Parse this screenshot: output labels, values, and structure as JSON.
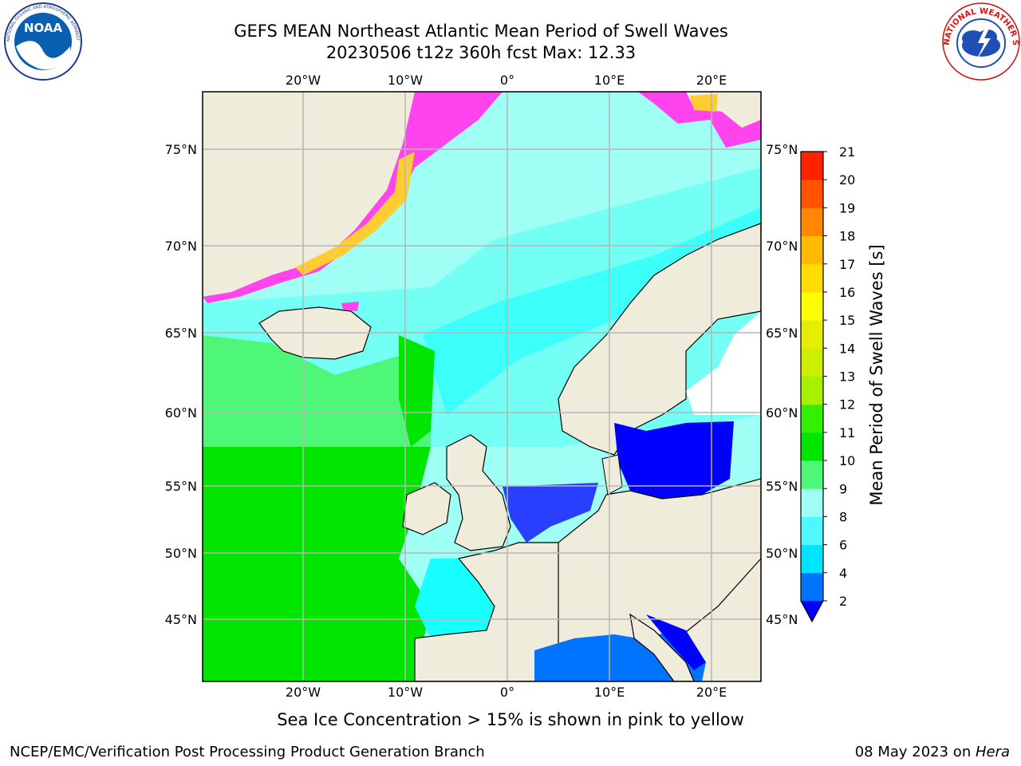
{
  "header": {
    "title_line1": "GEFS MEAN Northeast Atlantic Mean Period of Swell Waves",
    "title_line2": "20230506 t12z 360h fcst   Max: 12.33"
  },
  "logos": {
    "noaa_text": "NOAA",
    "noaa_ring_text": "NATIONAL OCEANIC AND ATMOSPHERIC ADMINISTRATION · U.S. DEPARTMENT OF COMMERCE",
    "nws_ring_text": "NATIONAL WEATHER SERVICE"
  },
  "map": {
    "lon_labels": [
      "20°W",
      "10°W",
      "0°",
      "10°E",
      "20°E"
    ],
    "lat_labels": [
      "75°N",
      "70°N",
      "65°N",
      "60°N",
      "55°N",
      "50°N",
      "45°N"
    ],
    "colors": {
      "ocean_high_lat": "#9ffff5",
      "ocean_mid": "#4ffff0",
      "cyan": "#19ffff",
      "green_light": "#4ff779",
      "green": "#00e600",
      "land": "#efecdc",
      "ice_pink": "#ff44ee",
      "ice_yellow": "#ffcc33",
      "grid": "#b5b5b5",
      "blue_dark": "#0000ff",
      "blue_mid": "#0073ff"
    }
  },
  "colorbar": {
    "label": "Mean Period of Swell Waves [s]",
    "ticks": [
      "2",
      "4",
      "6",
      "8",
      "9",
      "10",
      "11",
      "12",
      "13",
      "14",
      "15",
      "16",
      "17",
      "18",
      "19",
      "20",
      "21"
    ],
    "colors": [
      "#0073ff",
      "#00e5ff",
      "#4ff8ff",
      "#9ffff5",
      "#4ff779",
      "#00e600",
      "#33f000",
      "#a6f000",
      "#ccee00",
      "#e6ee00",
      "#ffff00",
      "#ffdd00",
      "#ffbb00",
      "#ff8800",
      "#ff5500",
      "#ff2200"
    ],
    "under_color": "#0000ff",
    "top_color": "#ff0000"
  },
  "notes": {
    "ice": "Sea Ice Concentration > 15% is shown in pink to yellow"
  },
  "footer": {
    "left": "NCEP/EMC/Verification Post Processing Product Generation Branch",
    "right_date": "08 May 2023 on ",
    "right_machine": "Hera"
  }
}
